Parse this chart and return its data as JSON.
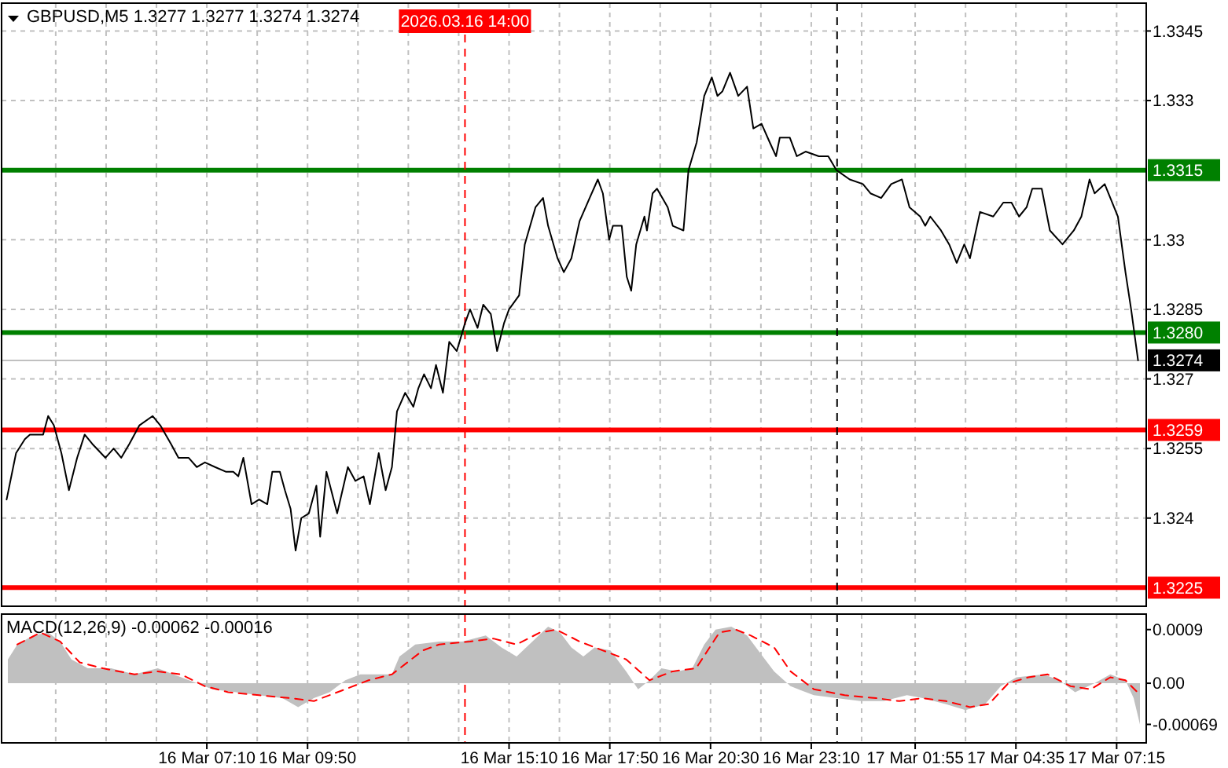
{
  "chart_data": [
    {
      "type": "line",
      "title": "GBPUSD,M5 1.3277 1.3277 1.3274 1.3274",
      "color": "#000000",
      "tick_labels": "y",
      "grid": true,
      "xlim": [
        "2026-03-16T01:44",
        "2026-03-17T08:02"
      ],
      "ylim": [
        1.3221,
        1.3351
      ],
      "xticks": [
        {
          "value": "2026-03-16T03:10",
          "label": null
        },
        {
          "value": "2026-03-16T04:30",
          "label": null
        },
        {
          "value": "2026-03-16T05:50",
          "label": null
        },
        {
          "value": "2026-03-16T07:10",
          "label": null
        },
        {
          "value": "2026-03-16T08:30",
          "label": null
        },
        {
          "value": "2026-03-16T09:50",
          "label": null
        },
        {
          "value": "2026-03-16T11:10",
          "label": null
        },
        {
          "value": "2026-03-16T12:30",
          "label": null
        },
        {
          "value": "2026-03-16T13:50",
          "label": null
        },
        {
          "value": "2026-03-16T15:10",
          "label": null
        },
        {
          "value": "2026-03-16T16:30",
          "label": null
        },
        {
          "value": "2026-03-16T17:50",
          "label": null
        },
        {
          "value": "2026-03-16T19:10",
          "label": null
        },
        {
          "value": "2026-03-16T20:30",
          "label": null
        },
        {
          "value": "2026-03-16T21:50",
          "label": null
        },
        {
          "value": "2026-03-16T23:10",
          "label": null
        },
        {
          "value": "2026-03-17T00:30",
          "label": null
        },
        {
          "value": "2026-03-17T01:55",
          "label": null
        },
        {
          "value": "2026-03-17T03:15",
          "label": null
        },
        {
          "value": "2026-03-17T04:35",
          "label": null
        },
        {
          "value": "2026-03-17T05:55",
          "label": null
        },
        {
          "value": "2026-03-17T07:15",
          "label": null
        }
      ],
      "yticks": [
        1.3345,
        1.333,
        1.33,
        1.3285,
        1.327,
        1.3255,
        1.324
      ],
      "x": [
        "2026-03-16T01:52",
        "2026-03-16T02:07",
        "2026-03-16T02:21",
        "2026-03-16T02:29",
        "2026-03-16T02:38",
        "2026-03-16T02:50",
        "2026-03-16T02:58",
        "2026-03-16T03:07",
        "2026-03-16T03:19",
        "2026-03-16T03:31",
        "2026-03-16T03:44",
        "2026-03-16T03:56",
        "2026-03-16T04:08",
        "2026-03-16T04:29",
        "2026-03-16T04:42",
        "2026-03-16T04:54",
        "2026-03-16T05:07",
        "2026-03-16T05:23",
        "2026-03-16T05:44",
        "2026-03-16T05:56",
        "2026-03-16T06:13",
        "2026-03-16T06:25",
        "2026-03-16T06:41",
        "2026-03-16T06:54",
        "2026-03-16T07:07",
        "2026-03-16T07:23",
        "2026-03-16T07:40",
        "2026-03-16T07:52",
        "2026-03-16T08:00",
        "2026-03-16T08:08",
        "2026-03-16T08:21",
        "2026-03-16T08:33",
        "2026-03-16T08:46",
        "2026-03-16T08:54",
        "2026-03-16T09:06",
        "2026-03-16T09:14",
        "2026-03-16T09:23",
        "2026-03-16T09:31",
        "2026-03-16T09:40",
        "2026-03-16T09:52",
        "2026-03-16T10:04",
        "2026-03-16T10:10",
        "2026-03-16T10:20",
        "2026-03-16T10:37",
        "2026-03-16T10:54",
        "2026-03-16T11:06",
        "2026-03-16T11:19",
        "2026-03-16T11:29",
        "2026-03-16T11:43",
        "2026-03-16T11:54",
        "2026-03-16T12:04",
        "2026-03-16T12:12",
        "2026-03-16T12:25",
        "2026-03-16T12:38",
        "2026-03-16T12:46",
        "2026-03-16T12:55",
        "2026-03-16T13:06",
        "2026-03-16T13:14",
        "2026-03-16T13:25",
        "2026-03-16T13:35",
        "2026-03-16T13:47",
        "2026-03-16T14:00",
        "2026-03-16T14:08",
        "2026-03-16T14:20",
        "2026-03-16T14:29",
        "2026-03-16T14:41",
        "2026-03-16T14:51",
        "2026-03-16T15:02",
        "2026-03-16T15:10",
        "2026-03-16T15:26",
        "2026-03-16T15:35",
        "2026-03-16T15:52",
        "2026-03-16T16:04",
        "2026-03-16T16:12",
        "2026-03-16T16:27",
        "2026-03-16T16:37",
        "2026-03-16T16:49",
        "2026-03-16T17:02",
        "2026-03-16T17:18",
        "2026-03-16T17:31",
        "2026-03-16T17:39",
        "2026-03-16T17:49",
        "2026-03-16T17:55",
        "2026-03-16T18:09",
        "2026-03-16T18:17",
        "2026-03-16T18:24",
        "2026-03-16T18:32",
        "2026-03-16T18:45",
        "2026-03-16T18:49",
        "2026-03-16T18:58",
        "2026-03-16T19:05",
        "2026-03-16T19:22",
        "2026-03-16T19:30",
        "2026-03-16T19:47",
        "2026-03-16T19:55",
        "2026-03-16T20:08",
        "2026-03-16T20:20",
        "2026-03-16T20:32",
        "2026-03-16T20:41",
        "2026-03-16T20:49",
        "2026-03-16T21:01",
        "2026-03-16T21:14",
        "2026-03-16T21:28",
        "2026-03-16T21:38",
        "2026-03-16T21:51",
        "2026-03-16T22:04",
        "2026-03-16T22:14",
        "2026-03-16T22:20",
        "2026-03-16T22:36",
        "2026-03-16T22:47",
        "2026-03-16T23:01",
        "2026-03-16T23:22",
        "2026-03-16T23:37",
        "2026-03-16T23:50",
        "2026-03-17T00:11",
        "2026-03-17T00:32",
        "2026-03-17T00:44",
        "2026-03-17T01:01",
        "2026-03-17T01:17",
        "2026-03-17T01:34",
        "2026-03-17T01:46",
        "2026-03-17T02:03",
        "2026-03-17T02:11",
        "2026-03-17T02:19",
        "2026-03-17T02:36",
        "2026-03-17T02:49",
        "2026-03-17T03:01",
        "2026-03-17T03:13",
        "2026-03-17T03:22",
        "2026-03-17T03:38",
        "2026-03-17T03:59",
        "2026-03-17T04:15",
        "2026-03-17T04:28",
        "2026-03-17T04:40",
        "2026-03-17T04:52",
        "2026-03-17T05:01",
        "2026-03-17T05:16",
        "2026-03-17T05:29",
        "2026-03-17T05:49",
        "2026-03-17T06:07",
        "2026-03-17T06:19",
        "2026-03-17T06:32",
        "2026-03-17T06:40",
        "2026-03-17T06:56",
        "2026-03-17T07:17",
        "2026-03-17T07:29",
        "2026-03-17T07:38",
        "2026-03-17T07:49"
      ],
      "values": [
        1.3244,
        1.3254,
        1.3257,
        1.3258,
        1.3258,
        1.3258,
        1.3262,
        1.326,
        1.3254,
        1.3246,
        1.3253,
        1.3258,
        1.3256,
        1.3253,
        1.3255,
        1.3253,
        1.3256,
        1.326,
        1.3262,
        1.326,
        1.3256,
        1.3253,
        1.3253,
        1.3251,
        1.3252,
        1.3251,
        1.325,
        1.325,
        1.3249,
        1.3253,
        1.3243,
        1.3244,
        1.3243,
        1.325,
        1.325,
        1.3246,
        1.3242,
        1.3233,
        1.324,
        1.3241,
        1.3247,
        1.3236,
        1.325,
        1.3241,
        1.3251,
        1.3248,
        1.3249,
        1.3243,
        1.3254,
        1.3246,
        1.3251,
        1.3263,
        1.3267,
        1.3264,
        1.3268,
        1.3271,
        1.3268,
        1.3273,
        1.3267,
        1.3278,
        1.3276,
        1.3282,
        1.3285,
        1.3281,
        1.3286,
        1.3284,
        1.3276,
        1.3282,
        1.3285,
        1.3288,
        1.3299,
        1.3307,
        1.3309,
        1.3303,
        1.3296,
        1.3293,
        1.3296,
        1.3304,
        1.3309,
        1.3313,
        1.331,
        1.33,
        1.3303,
        1.3303,
        1.3292,
        1.3289,
        1.3299,
        1.3305,
        1.3302,
        1.331,
        1.3311,
        1.3307,
        1.3303,
        1.3302,
        1.3315,
        1.3321,
        1.3331,
        1.3335,
        1.3331,
        1.3332,
        1.3336,
        1.3331,
        1.3333,
        1.3324,
        1.3325,
        1.3321,
        1.3318,
        1.3322,
        1.3322,
        1.3318,
        1.3319,
        1.3318,
        1.3318,
        1.3315,
        1.3313,
        1.3312,
        1.331,
        1.3309,
        1.3312,
        1.3313,
        1.3307,
        1.3305,
        1.3303,
        1.3305,
        1.3302,
        1.3299,
        1.3295,
        1.3299,
        1.3296,
        1.3306,
        1.3305,
        1.3308,
        1.3308,
        1.3305,
        1.3307,
        1.3311,
        1.3311,
        1.3302,
        1.3299,
        1.3302,
        1.3305,
        1.3313,
        1.331,
        1.3312,
        1.3305,
        1.3293,
        1.3285,
        1.3274
      ],
      "ref_lines": [
        {
          "axis": "y",
          "value": 1.3315,
          "label": "1.3315",
          "color": "#008000"
        },
        {
          "axis": "y",
          "value": 1.328,
          "label": "1.3280",
          "color": "#008000"
        },
        {
          "axis": "y",
          "value": 1.3274,
          "label": "1.3274",
          "color": "#c0c0c0"
        },
        {
          "axis": "y",
          "value": 1.3259,
          "label": "1.3259",
          "color": "#ff0000"
        },
        {
          "axis": "y",
          "value": 1.3225,
          "label": "1.3225",
          "color": "#ff0000"
        },
        {
          "axis": "x",
          "value": "2026-03-16T14:00",
          "label": "2026.03.16 14:00",
          "color": "#ff0000",
          "line_style": "dashed"
        },
        {
          "axis": "x",
          "value": "2026-03-16T23:51",
          "color": "#000000",
          "line_style": "dashed"
        }
      ]
    },
    {
      "type": "area",
      "title": "MACD(12,26,9) -0.00062 -0.00016",
      "grid": "x",
      "xlim": [
        "2026-03-16T01:44",
        "2026-03-17T08:02"
      ],
      "ylim": [
        -0.001,
        0.00116
      ],
      "xticks": [
        {
          "value": "2026-03-16T03:10",
          "label": null
        },
        {
          "value": "2026-03-16T04:30",
          "label": null
        },
        {
          "value": "2026-03-16T05:50",
          "label": null
        },
        {
          "value": "2026-03-16T07:10",
          "label": "16 Mar 07:10"
        },
        {
          "value": "2026-03-16T08:30",
          "label": null
        },
        {
          "value": "2026-03-16T09:50",
          "label": "16 Mar 09:50"
        },
        {
          "value": "2026-03-16T11:10",
          "label": null
        },
        {
          "value": "2026-03-16T12:30",
          "label": null
        },
        {
          "value": "2026-03-16T13:50",
          "label": null
        },
        {
          "value": "2026-03-16T15:10",
          "label": "16 Mar 15:10"
        },
        {
          "value": "2026-03-16T16:30",
          "label": null
        },
        {
          "value": "2026-03-16T17:50",
          "label": "16 Mar 17:50"
        },
        {
          "value": "2026-03-16T19:10",
          "label": null
        },
        {
          "value": "2026-03-16T20:30",
          "label": "16 Mar 20:30"
        },
        {
          "value": "2026-03-16T21:50",
          "label": null
        },
        {
          "value": "2026-03-16T23:10",
          "label": "16 Mar 23:10"
        },
        {
          "value": "2026-03-17T00:30",
          "label": null
        },
        {
          "value": "2026-03-17T01:55",
          "label": "17 Mar 01:55"
        },
        {
          "value": "2026-03-17T03:15",
          "label": null
        },
        {
          "value": "2026-03-17T04:35",
          "label": "17 Mar 04:35"
        },
        {
          "value": "2026-03-17T05:55",
          "label": null
        },
        {
          "value": "2026-03-17T07:15",
          "label": "17 Mar 07:15"
        }
      ],
      "yticks": [
        {
          "value": 0.0009,
          "label": "0.0009"
        },
        {
          "value": 0,
          "label": "0.00"
        },
        {
          "value": -0.00069,
          "label": "-0.00069"
        }
      ],
      "series": [
        {
          "type": "area",
          "color": "#c0c0c0",
          "x": [
            "2026-03-16T01:54",
            "2026-03-16T02:09",
            "2026-03-16T02:34",
            "2026-03-16T02:58",
            "2026-03-16T03:17",
            "2026-03-16T03:35",
            "2026-03-16T04:01",
            "2026-03-16T04:38",
            "2026-03-16T05:15",
            "2026-03-16T05:52",
            "2026-03-16T06:17",
            "2026-03-16T06:54",
            "2026-03-16T07:19",
            "2026-03-16T07:56",
            "2026-03-16T08:33",
            "2026-03-16T09:10",
            "2026-03-16T09:35",
            "2026-03-16T10:00",
            "2026-03-16T10:25",
            "2026-03-16T10:50",
            "2026-03-16T11:14",
            "2026-03-16T11:39",
            "2026-03-16T12:04",
            "2026-03-16T12:16",
            "2026-03-16T12:41",
            "2026-03-16T13:19",
            "2026-03-16T13:56",
            "2026-03-16T14:33",
            "2026-03-16T14:58",
            "2026-03-16T15:22",
            "2026-03-16T15:47",
            "2026-03-16T16:12",
            "2026-03-16T16:31",
            "2026-03-16T16:49",
            "2026-03-16T17:08",
            "2026-03-16T17:26",
            "2026-03-16T17:51",
            "2026-03-16T18:16",
            "2026-03-16T18:35",
            "2026-03-16T18:53",
            "2026-03-16T19:12",
            "2026-03-16T19:37",
            "2026-03-16T20:01",
            "2026-03-16T20:20",
            "2026-03-16T20:38",
            "2026-03-16T21:03",
            "2026-03-16T21:28",
            "2026-03-16T21:53",
            "2026-03-16T22:11",
            "2026-03-16T22:37",
            "2026-03-16T23:14",
            "2026-03-16T23:50",
            "2026-03-17T00:28",
            "2026-03-17T01:05",
            "2026-03-17T01:42",
            "2026-03-17T02:07",
            "2026-03-17T02:44",
            "2026-03-17T03:15",
            "2026-03-17T03:46",
            "2026-03-17T04:11",
            "2026-03-17T04:36",
            "2026-03-17T05:19",
            "2026-03-17T05:44",
            "2026-03-17T06:09",
            "2026-03-17T06:40",
            "2026-03-17T07:05",
            "2026-03-17T07:29",
            "2026-03-17T07:42",
            "2026-03-17T07:52"
          ],
          "values": [
            0.0004,
            0.00065,
            0.0008,
            0.00085,
            0.0007,
            0.0004,
            0.00025,
            0.00025,
            0.00015,
            0.00025,
            0.00015,
            0,
            -0.0001,
            -0.00015,
            -0.0002,
            -0.00025,
            -0.0004,
            -0.00025,
            -0.00015,
            5e-05,
            0.00015,
            0.00015,
            0.00015,
            0.00045,
            0.00065,
            0.0007,
            0.0007,
            0.0008,
            0.0006,
            0.00045,
            0.0007,
            0.00095,
            0.00085,
            0.0006,
            0.00045,
            0.0006,
            0.00055,
            0.0002,
            -0.0001,
            5e-05,
            0.00025,
            0.0002,
            0.00025,
            0.00065,
            0.0009,
            0.00095,
            0.0008,
            0.00045,
            0.0002,
            -5e-05,
            -0.0002,
            -0.00025,
            -0.0003,
            -0.0003,
            -0.0002,
            -0.00025,
            -0.00035,
            -0.00045,
            -0.00035,
            -5e-05,
            0.0001,
            0.00015,
            5e-05,
            -0.00015,
            0,
            0.00015,
            5e-05,
            -0.00025,
            -0.00069
          ]
        },
        {
          "type": "line",
          "color": "#ff0000",
          "line_style": "dashed",
          "x": [
            "2026-03-16T02:09",
            "2026-03-16T02:46",
            "2026-03-16T03:17",
            "2026-03-16T03:48",
            "2026-03-16T04:25",
            "2026-03-16T05:15",
            "2026-03-16T05:52",
            "2026-03-16T06:29",
            "2026-03-16T07:07",
            "2026-03-16T07:44",
            "2026-03-16T08:33",
            "2026-03-16T09:23",
            "2026-03-16T10:00",
            "2026-03-16T10:50",
            "2026-03-16T11:27",
            "2026-03-16T12:04",
            "2026-03-16T12:53",
            "2026-03-16T13:19",
            "2026-03-16T14:08",
            "2026-03-16T14:45",
            "2026-03-16T15:22",
            "2026-03-16T15:59",
            "2026-03-16T16:25",
            "2026-03-16T17:02",
            "2026-03-16T17:39",
            "2026-03-16T18:16",
            "2026-03-16T18:53",
            "2026-03-16T19:30",
            "2026-03-16T20:07",
            "2026-03-16T20:44",
            "2026-03-16T21:10",
            "2026-03-16T21:34",
            "2026-03-16T22:11",
            "2026-03-16T22:37",
            "2026-03-16T23:14",
            "2026-03-17T00:03",
            "2026-03-17T00:53",
            "2026-03-17T01:30",
            "2026-03-17T02:07",
            "2026-03-17T02:44",
            "2026-03-17T03:22",
            "2026-03-17T03:52",
            "2026-03-17T04:23",
            "2026-03-17T04:55",
            "2026-03-17T05:25",
            "2026-03-17T06:02",
            "2026-03-17T06:34",
            "2026-03-17T07:05",
            "2026-03-17T07:29",
            "2026-03-17T07:48"
          ],
          "values": [
            0.00065,
            0.00085,
            0.0007,
            0.00035,
            0.00025,
            0.00015,
            0.0002,
            0.00015,
            -5e-05,
            -0.00015,
            -0.0002,
            -0.00025,
            -0.0003,
            -0.0001,
            5e-05,
            0.00015,
            0.00055,
            0.00065,
            0.0007,
            0.00075,
            0.00065,
            0.00085,
            0.0009,
            0.0007,
            0.00055,
            0.0004,
            5e-05,
            0.0002,
            0.00025,
            0.00085,
            0.0009,
            0.0008,
            0.0006,
            0.0002,
            -0.0001,
            -0.0002,
            -0.00025,
            -0.0003,
            -0.00025,
            -0.0003,
            -0.0004,
            -0.00035,
            0,
            0.0001,
            0.00015,
            -5e-05,
            -0.0001,
            0.0001,
            5e-05,
            -0.00015
          ]
        }
      ],
      "ref_lines": [
        {
          "axis": "x",
          "value": "2026-03-16T14:00",
          "color": "#ff0000",
          "line_style": "dashed"
        },
        {
          "axis": "x",
          "value": "2026-03-16T23:51",
          "color": "#000000",
          "line_style": "dashed"
        }
      ]
    }
  ]
}
